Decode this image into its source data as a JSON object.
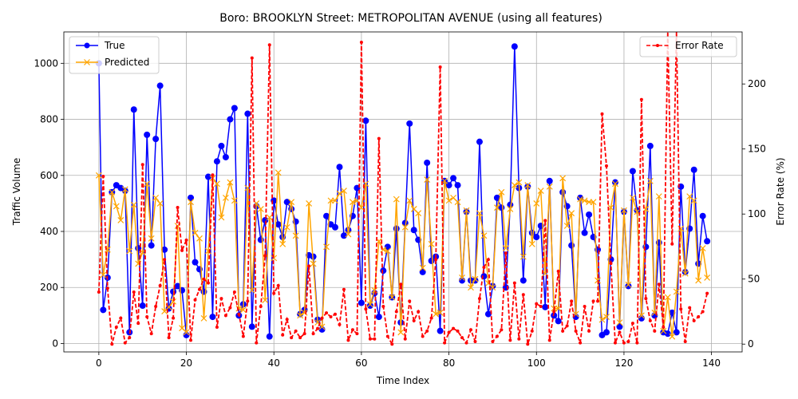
{
  "chart_data": {
    "type": "line",
    "title": "Boro: BROOKLYN Street: METROPOLITAN AVENUE (using all features)",
    "xlabel": "Time Index",
    "ylabel": "Traffic Volume",
    "y2label": "Error Rate (%)",
    "xlim": [
      -8,
      147
    ],
    "ylim": [
      -30,
      1112
    ],
    "y2lim": [
      -6,
      240
    ],
    "x_ticks": [
      0,
      20,
      40,
      60,
      80,
      100,
      120,
      140
    ],
    "y_ticks": [
      0,
      200,
      400,
      600,
      800,
      1000
    ],
    "y2_ticks": [
      0,
      50,
      100,
      150,
      200
    ],
    "grid": true,
    "legend_left": "top-left",
    "legend_right": "top-right",
    "colors": {
      "true": "#0000ff",
      "predicted": "#ffa500",
      "error": "#ff0000"
    },
    "series": [
      {
        "name": "True",
        "axis": "left",
        "values": [
          1000,
          120,
          235,
          540,
          565,
          555,
          545,
          40,
          835,
          340,
          135,
          745,
          350,
          730,
          920,
          335,
          125,
          185,
          205,
          190,
          30,
          520,
          290,
          265,
          185,
          595,
          95,
          650,
          705,
          665,
          800,
          840,
          100,
          140,
          820,
          60,
          490,
          370,
          440,
          25,
          510,
          425,
          380,
          505,
          480,
          435,
          105,
          120,
          315,
          310,
          85,
          50,
          455,
          425,
          415,
          630,
          385,
          405,
          455,
          555,
          145,
          795,
          135,
          180,
          95,
          260,
          345,
          165,
          410,
          75,
          430,
          785,
          405,
          370,
          255,
          645,
          295,
          310,
          45,
          580,
          565,
          590,
          565,
          225,
          470,
          225,
          225,
          720,
          240,
          105,
          205,
          520,
          485,
          200,
          495,
          1060,
          555,
          225,
          560,
          395,
          380,
          420,
          130,
          580,
          100,
          80,
          540,
          490,
          350,
          95,
          520,
          395,
          460,
          380,
          335,
          30,
          40,
          300,
          575,
          60,
          470,
          205,
          615,
          475,
          90,
          345,
          705,
          100,
          360,
          40,
          35,
          110,
          40,
          560,
          255,
          410,
          620,
          285,
          455,
          365
        ]
      },
      {
        "name": "Predicted",
        "axis": "left",
        "values": [
          600,
          245,
          335,
          540,
          490,
          440,
          550,
          330,
          495,
          285,
          325,
          570,
          375,
          520,
          500,
          115,
          130,
          150,
          420,
          55,
          40,
          505,
          395,
          375,
          90,
          330,
          590,
          570,
          450,
          520,
          575,
          510,
          125,
          120,
          555,
          190,
          500,
          480,
          155,
          450,
          305,
          610,
          355,
          415,
          505,
          385,
          100,
          110,
          500,
          285,
          75,
          60,
          345,
          510,
          510,
          535,
          545,
          390,
          505,
          510,
          485,
          570,
          140,
          190,
          365,
          335,
          330,
          165,
          515,
          40,
          415,
          510,
          480,
          465,
          270,
          585,
          355,
          105,
          110,
          580,
          510,
          520,
          505,
          235,
          475,
          200,
          230,
          465,
          385,
          215,
          200,
          485,
          540,
          340,
          480,
          565,
          575,
          310,
          565,
          355,
          500,
          545,
          250,
          560,
          125,
          125,
          590,
          420,
          465,
          105,
          515,
          510,
          505,
          505,
          225,
          85,
          95,
          485,
          570,
          75,
          475,
          210,
          520,
          470,
          100,
          480,
          580,
          110,
          525,
          45,
          165,
          25,
          185,
          410,
          250,
          525,
          510,
          225,
          340,
          235
        ]
      },
      {
        "name": "Error Rate",
        "axis": "right",
        "values": [
          40,
          129,
          43,
          0,
          13,
          20,
          1,
          5,
          40,
          16,
          138,
          21,
          8,
          29,
          45,
          65,
          5,
          20,
          105,
          72,
          80,
          3,
          34,
          42,
          50,
          47,
          130,
          13,
          35,
          22,
          28,
          40,
          23,
          6,
          33,
          220,
          1,
          29,
          68,
          230,
          39,
          45,
          7,
          19,
          5,
          10,
          5,
          8,
          60,
          8,
          12,
          20,
          24,
          21,
          23,
          15,
          42,
          3,
          11,
          8,
          232,
          27,
          4,
          4,
          158,
          29,
          6,
          0,
          25,
          46,
          4,
          33,
          18,
          25,
          6,
          10,
          20,
          65,
          213,
          1,
          9,
          12,
          10,
          5,
          1,
          11,
          2,
          35,
          59,
          65,
          2,
          6,
          11,
          70,
          3,
          47,
          4,
          38,
          0,
          10,
          31,
          29,
          95,
          3,
          25,
          56,
          10,
          14,
          33,
          10,
          1,
          29,
          10,
          33,
          33,
          177,
          137,
          62,
          1,
          9,
          1,
          2,
          16,
          1,
          188,
          35,
          18,
          10,
          46,
          13,
          370,
          77,
          365,
          27,
          2,
          28,
          18,
          21,
          25,
          39
        ]
      }
    ]
  }
}
